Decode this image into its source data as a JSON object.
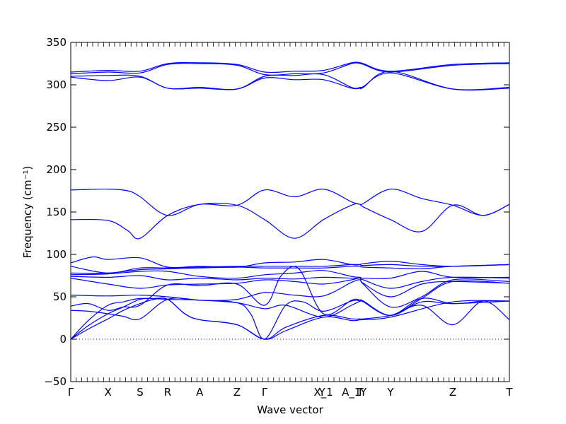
{
  "chart_data": {
    "type": "line",
    "title": "",
    "xlabel": "Wave vector",
    "ylabel": "Frequency (cm⁻¹)",
    "ylim": [
      -50,
      350
    ],
    "xlim": [
      0,
      1
    ],
    "grid": false,
    "series_color": "#0000ff",
    "zero_line_color": "#0000ff",
    "yticks": [
      -50,
      0,
      50,
      100,
      150,
      200,
      250,
      300,
      350
    ],
    "ytick_labels": [
      "−50",
      "0",
      "50",
      "100",
      "150",
      "200",
      "250",
      "300",
      "350"
    ],
    "high_symmetry_points": [
      {
        "label": "Γ",
        "x": 0.0
      },
      {
        "label": "X",
        "x": 0.085
      },
      {
        "label": "S",
        "x": 0.158
      },
      {
        "label": "R",
        "x": 0.221
      },
      {
        "label": "A",
        "x": 0.294
      },
      {
        "label": "Z",
        "x": 0.379
      },
      {
        "label": "Γ",
        "x": 0.442
      },
      {
        "label": "Y",
        "x": 0.573
      },
      {
        "label": "X_1",
        "x": 0.576
      },
      {
        "label": "A_1",
        "x": 0.64
      },
      {
        "label": "T",
        "x": 0.66
      },
      {
        "label": "Y",
        "x": 0.667
      },
      {
        "label": "Y",
        "x": 0.729
      },
      {
        "label": "Z",
        "x": 0.871
      },
      {
        "label": "T",
        "x": 1.0
      }
    ],
    "series": [
      {
        "x": [
          0,
          0.085,
          0.13,
          0.158,
          0.221,
          0.294,
          0.379,
          0.442,
          0.51,
          0.576,
          0.64,
          0.66,
          0.667,
          0.729,
          0.8,
          0.871,
          0.94,
          1.0
        ],
        "values": [
          176,
          177,
          175,
          168,
          146,
          159,
          158,
          176,
          168,
          177,
          162,
          159,
          160,
          177,
          166,
          158,
          146,
          159
        ]
      },
      {
        "x": [
          0,
          0.085,
          0.13,
          0.158,
          0.221,
          0.294,
          0.379,
          0.442,
          0.51,
          0.576,
          0.64,
          0.66,
          0.667,
          0.729,
          0.8,
          0.871,
          0.94,
          1.0
        ],
        "values": [
          141,
          140,
          128,
          119,
          146,
          159,
          158,
          141,
          119,
          141,
          158,
          159,
          156,
          141,
          127,
          158,
          146,
          159
        ]
      },
      {
        "x": [
          0,
          0.085,
          0.158,
          0.221,
          0.294,
          0.379,
          0.442,
          0.51,
          0.576,
          0.64,
          0.66,
          0.667,
          0.729,
          0.871,
          1.0
        ],
        "values": [
          315,
          317,
          316,
          325,
          326,
          324,
          315,
          316,
          317,
          326,
          326,
          325,
          316,
          324,
          326
        ]
      },
      {
        "x": [
          0,
          0.085,
          0.158,
          0.221,
          0.294,
          0.379,
          0.442,
          0.51,
          0.576,
          0.64,
          0.66,
          0.667,
          0.729,
          0.871,
          1.0
        ],
        "values": [
          313,
          315,
          314,
          324,
          325,
          323,
          312,
          313,
          314,
          325,
          325,
          324,
          315,
          323,
          325
        ]
      },
      {
        "x": [
          0,
          0.085,
          0.158,
          0.221,
          0.294,
          0.379,
          0.442,
          0.51,
          0.576,
          0.64,
          0.66,
          0.667,
          0.729,
          0.871,
          1.0
        ],
        "values": [
          310,
          311,
          310,
          296,
          297,
          295,
          310,
          311,
          312,
          297,
          297,
          298,
          314,
          295,
          297
        ]
      },
      {
        "x": [
          0,
          0.085,
          0.158,
          0.221,
          0.294,
          0.379,
          0.442,
          0.51,
          0.576,
          0.64,
          0.66,
          0.667,
          0.729,
          0.871,
          1.0
        ],
        "values": [
          309,
          305,
          309,
          296,
          296,
          295,
          308,
          306,
          306,
          296,
          296,
          297,
          316,
          295,
          296
        ]
      },
      {
        "x": [
          0,
          0.04,
          0.085,
          0.12,
          0.158,
          0.19,
          0.221,
          0.26,
          0.294,
          0.379,
          0.442,
          0.49,
          0.576,
          0.64,
          0.66,
          0.667,
          0.729,
          0.871,
          1.0
        ],
        "values": [
          0,
          12,
          24,
          34,
          42,
          47,
          47,
          30,
          23,
          17,
          0,
          10,
          26,
          22,
          23,
          23,
          26,
          44,
          45
        ]
      },
      {
        "x": [
          0,
          0.04,
          0.085,
          0.12,
          0.158,
          0.19,
          0.221,
          0.26,
          0.294,
          0.379,
          0.442,
          0.49,
          0.576,
          0.64,
          0.66,
          0.667,
          0.729,
          0.8,
          0.871,
          0.94,
          1.0
        ],
        "values": [
          0,
          16,
          30,
          38,
          47,
          48,
          47,
          30,
          23,
          17,
          0,
          14,
          28,
          24,
          24,
          24,
          28,
          40,
          17,
          45,
          23
        ]
      },
      {
        "x": [
          0,
          0.04,
          0.085,
          0.12,
          0.158,
          0.221,
          0.294,
          0.379,
          0.41,
          0.442,
          0.49,
          0.53,
          0.576,
          0.64,
          0.66,
          0.667,
          0.729,
          0.8,
          0.871,
          0.94,
          1.0
        ],
        "values": [
          0,
          22,
          40,
          44,
          48,
          47,
          46,
          43,
          30,
          0,
          40,
          44,
          33,
          45,
          45,
          44,
          28,
          48,
          42,
          45,
          45
        ]
      },
      {
        "x": [
          0,
          0.04,
          0.085,
          0.12,
          0.158,
          0.221,
          0.294,
          0.379,
          0.442,
          0.49,
          0.576,
          0.64,
          0.66,
          0.667,
          0.729,
          0.8,
          0.871,
          1.0
        ],
        "values": [
          34,
          33,
          30,
          27,
          24,
          47,
          46,
          43,
          36,
          40,
          26,
          40,
          45,
          45,
          28,
          44,
          42,
          45
        ]
      },
      {
        "x": [
          0,
          0.04,
          0.085,
          0.12,
          0.158,
          0.221,
          0.294,
          0.379,
          0.442,
          0.48,
          0.52,
          0.576,
          0.64,
          0.66,
          0.667,
          0.729,
          0.8,
          0.871,
          1.0
        ],
        "values": [
          39,
          42,
          34,
          38,
          40,
          64,
          63,
          65,
          40,
          75,
          83,
          30,
          46,
          46,
          45,
          28,
          48,
          68,
          66
        ]
      },
      {
        "x": [
          0,
          0.085,
          0.158,
          0.221,
          0.294,
          0.379,
          0.442,
          0.51,
          0.576,
          0.64,
          0.66,
          0.667,
          0.729,
          0.8,
          0.871,
          1.0
        ],
        "values": [
          52,
          51,
          52,
          50,
          46,
          47,
          55,
          52,
          51,
          67,
          70,
          65,
          38,
          50,
          70,
          68
        ]
      },
      {
        "x": [
          0,
          0.085,
          0.158,
          0.221,
          0.294,
          0.379,
          0.442,
          0.51,
          0.576,
          0.64,
          0.66,
          0.667,
          0.729,
          0.8,
          0.871,
          1.0
        ],
        "values": [
          72,
          65,
          60,
          64,
          65,
          66,
          70,
          68,
          65,
          70,
          72,
          66,
          50,
          65,
          68,
          66
        ]
      },
      {
        "x": [
          0,
          0.085,
          0.158,
          0.221,
          0.294,
          0.379,
          0.442,
          0.51,
          0.576,
          0.64,
          0.66,
          0.667,
          0.729,
          0.8,
          0.871,
          1.0
        ],
        "values": [
          74,
          73,
          75,
          70,
          72,
          70,
          72,
          71,
          73,
          72,
          72,
          70,
          60,
          68,
          73,
          72
        ]
      },
      {
        "x": [
          0,
          0.085,
          0.158,
          0.221,
          0.294,
          0.379,
          0.442,
          0.51,
          0.576,
          0.64,
          0.66,
          0.667,
          0.729,
          0.8,
          0.871,
          1.0
        ],
        "values": [
          76,
          77,
          80,
          80,
          74,
          72,
          76,
          78,
          81,
          74,
          73,
          72,
          72,
          80,
          73,
          73
        ]
      },
      {
        "x": [
          0,
          0.085,
          0.158,
          0.221,
          0.294,
          0.379,
          0.442,
          0.51,
          0.576,
          0.64,
          0.66,
          0.667,
          0.729,
          0.8,
          0.871,
          1.0
        ],
        "values": [
          78,
          78,
          82,
          83,
          84,
          85,
          84,
          84,
          84,
          86,
          86,
          85,
          84,
          83,
          86,
          88
        ]
      },
      {
        "x": [
          0,
          0.085,
          0.158,
          0.221,
          0.294,
          0.379,
          0.442,
          0.51,
          0.576,
          0.64,
          0.66,
          0.667,
          0.729,
          0.8,
          0.871,
          1.0
        ],
        "values": [
          86,
          78,
          84,
          84,
          85,
          86,
          86,
          86,
          86,
          88,
          88,
          87,
          88,
          86,
          86,
          88
        ]
      },
      {
        "x": [
          0,
          0.05,
          0.085,
          0.158,
          0.221,
          0.294,
          0.379,
          0.442,
          0.51,
          0.576,
          0.64,
          0.66,
          0.667,
          0.729,
          0.8,
          0.871,
          1.0
        ],
        "values": [
          90,
          97,
          94,
          96,
          85,
          86,
          85,
          90,
          91,
          94,
          88,
          88,
          89,
          92,
          88,
          86,
          88
        ]
      }
    ]
  }
}
